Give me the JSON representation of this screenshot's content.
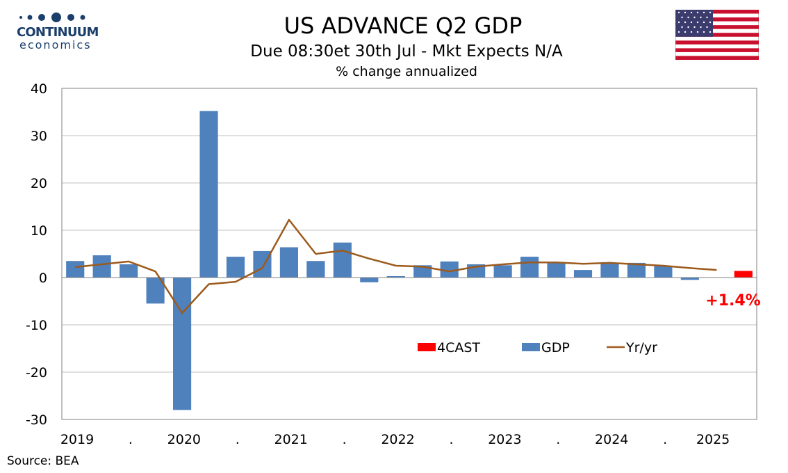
{
  "header": {
    "title": "US ADVANCE Q2  GDP",
    "subtitle": "Due 08:30et 30th Jul - Mkt Expects N/A",
    "units": "% change annualized"
  },
  "logo": {
    "name": "CONTINUUM",
    "sub": "economics",
    "color": "#1b3f6b"
  },
  "flag": {
    "label": "US flag"
  },
  "footer": {
    "source": "Source: BEA"
  },
  "chart_data": {
    "type": "bar",
    "title": "US ADVANCE Q2  GDP",
    "ylabel": "% change annualized",
    "ylim": [
      -30,
      40
    ],
    "yticks": [
      40,
      30,
      20,
      10,
      0,
      -10,
      -20,
      -30
    ],
    "x_tick_labels": [
      "2019",
      ".",
      "2020",
      ".",
      "2021",
      ".",
      "2022",
      ".",
      "2023",
      ".",
      "2024",
      ".",
      "2025"
    ],
    "x_tick_quarter_index": [
      0,
      2,
      4,
      6,
      8,
      10,
      12,
      14,
      16,
      18,
      20,
      22,
      24
    ],
    "categories": [
      "2019Q1",
      "2019Q2",
      "2019Q3",
      "2019Q4",
      "2020Q1",
      "2020Q2",
      "2020Q3",
      "2020Q4",
      "2021Q1",
      "2021Q2",
      "2021Q3",
      "2021Q4",
      "2022Q1",
      "2022Q2",
      "2022Q3",
      "2022Q4",
      "2023Q1",
      "2023Q2",
      "2023Q3",
      "2023Q4",
      "2024Q1",
      "2024Q2",
      "2024Q3",
      "2024Q4",
      "2025Q1",
      "2025Q2"
    ],
    "series": [
      {
        "name": "GDP",
        "type": "bar",
        "color": "#4f81bd",
        "values": [
          3.5,
          4.7,
          2.8,
          -5.5,
          -28.0,
          35.2,
          4.4,
          5.6,
          6.4,
          3.5,
          7.4,
          -1.0,
          0.3,
          2.6,
          3.4,
          2.8,
          2.6,
          4.4,
          3.2,
          1.6,
          3.0,
          3.1,
          2.5,
          -0.5,
          null,
          null
        ]
      },
      {
        "name": "4CAST",
        "type": "bar",
        "color": "#ff0000",
        "values": [
          null,
          null,
          null,
          null,
          null,
          null,
          null,
          null,
          null,
          null,
          null,
          null,
          null,
          null,
          null,
          null,
          null,
          null,
          null,
          null,
          null,
          null,
          null,
          null,
          null,
          1.4
        ]
      },
      {
        "name": "Yr/yr",
        "type": "line",
        "color": "#9c5a1c",
        "values": [
          2.2,
          2.8,
          3.4,
          1.3,
          -7.5,
          -1.4,
          -0.9,
          2.0,
          12.2,
          5.0,
          5.7,
          4.0,
          2.5,
          2.3,
          1.3,
          2.3,
          2.8,
          3.2,
          3.2,
          2.9,
          3.1,
          2.8,
          2.5,
          2.0,
          1.6,
          null
        ]
      }
    ],
    "legend": [
      "4CAST",
      "GDP",
      "Yr/yr"
    ],
    "legend_position": "bottom-right",
    "annotation": {
      "text": "+1.4%",
      "color": "#ff0000"
    },
    "grid": true
  }
}
